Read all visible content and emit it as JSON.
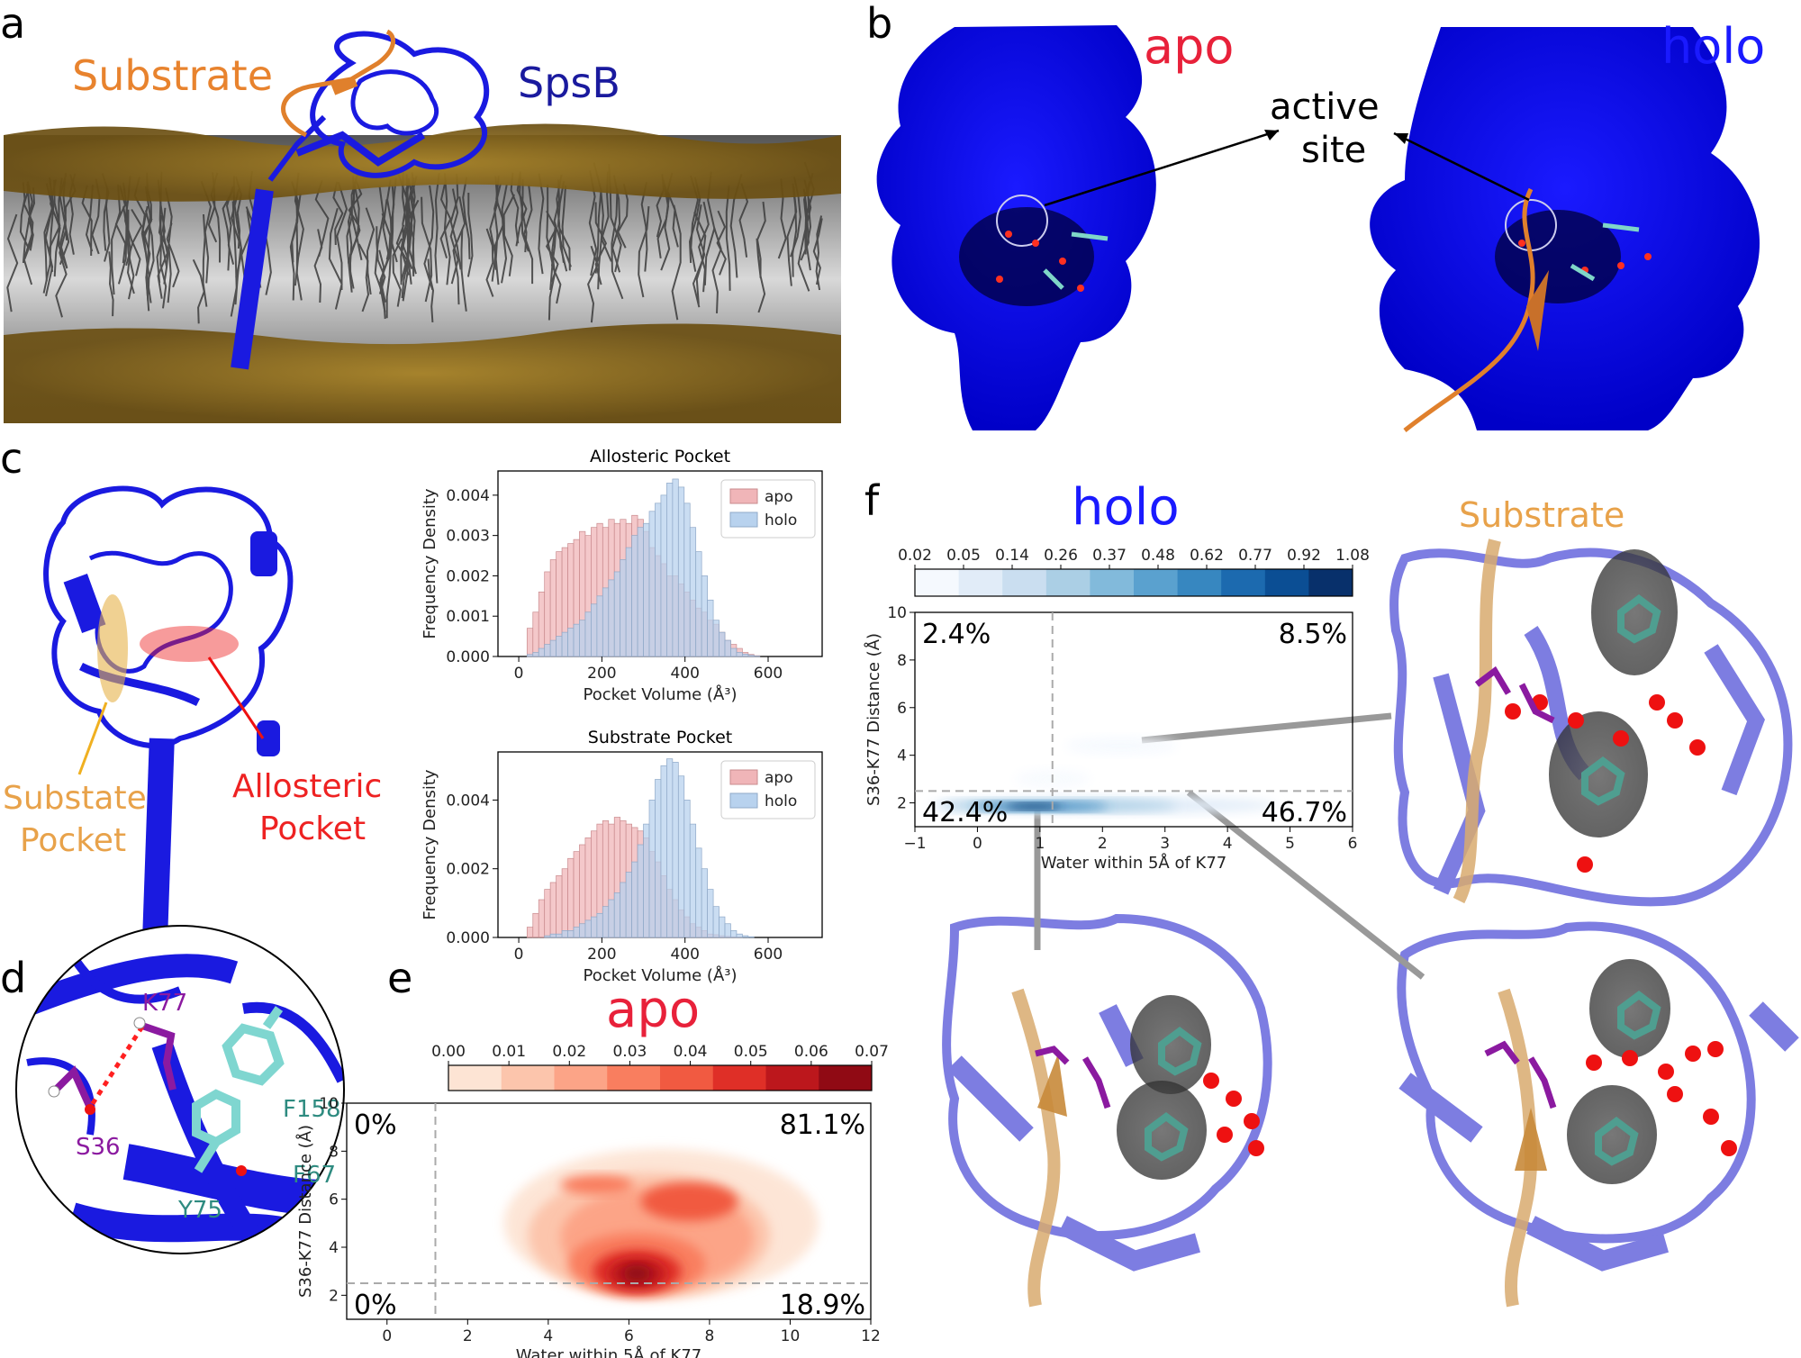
{
  "panels": {
    "a": {
      "label": "a",
      "substrate_label": "Substrate",
      "spsb_label": "SpsB",
      "colors": {
        "substrate": "#e0802c",
        "protein": "#1a1adb",
        "lipid_heads": "#8a6a1e",
        "lipid_tails": "#3a3a3a"
      }
    },
    "b": {
      "label": "b",
      "apo_label": "apo",
      "holo_label": "holo",
      "active_site_line1": "active",
      "active_site_line2": "site",
      "colors": {
        "apo": "#e8213a",
        "holo": "#1a1aff",
        "surface": "#0a0aee"
      }
    },
    "c": {
      "label": "c",
      "substrate_pocket_line1": "Substate",
      "substrate_pocket_line2": "Pocket",
      "allosteric_pocket_line1": "Allosteric",
      "allosteric_pocket_line2": "Pocket",
      "colors": {
        "substrate_pocket": "#e6b24a",
        "allosteric_pocket": "#ee2222"
      }
    },
    "d": {
      "label": "d",
      "residues": {
        "k77": "K77",
        "s36": "S36",
        "f158": "F158",
        "f67": "F67",
        "y75": "Y75"
      },
      "colors": {
        "k77": "#8b1aa0",
        "s36": "#8b1aa0",
        "aromatic": "#2e8b80"
      }
    },
    "e": {
      "label": "e",
      "title": "apo"
    },
    "f": {
      "label": "f",
      "title": "holo",
      "substrate_label": "Substrate"
    }
  },
  "chart_data": [
    {
      "id": "allosteric-hist",
      "type": "bar",
      "title": "Allosteric Pocket",
      "xlabel": "Pocket Volume (Å³)",
      "ylabel": "Frequency Density",
      "xlim": [
        -50,
        730
      ],
      "ylim": [
        0,
        0.0046
      ],
      "xticks": [
        "0",
        "200",
        "400",
        "600"
      ],
      "yticks": [
        "0.000",
        "0.001",
        "0.002",
        "0.003",
        "0.004"
      ],
      "legend": [
        "apo",
        "holo"
      ],
      "legend_position": "top-right",
      "colors": {
        "apo": "#f0b5b8",
        "holo": "#b8d2ee"
      },
      "bin_start": 20,
      "bin_width": 14,
      "series": [
        {
          "name": "apo",
          "values": [
            0.0007,
            0.0011,
            0.0016,
            0.0021,
            0.0024,
            0.0026,
            0.0027,
            0.0028,
            0.0029,
            0.0031,
            0.003,
            0.0032,
            0.0033,
            0.0032,
            0.0034,
            0.0033,
            0.0034,
            0.0033,
            0.0035,
            0.0034,
            0.0031,
            0.0027,
            0.0025,
            0.0023,
            0.002,
            0.002,
            0.0018,
            0.0016,
            0.0014,
            0.0012,
            0.0011,
            0.0009,
            0.0008,
            0.0006,
            0.0004,
            0.0003,
            0.0002,
            0.0001,
            5e-05,
            2e-05
          ]
        },
        {
          "name": "holo",
          "values": [
            5e-05,
            0.0001,
            0.0002,
            0.0003,
            0.0004,
            0.0005,
            0.0006,
            0.0007,
            0.0008,
            0.0009,
            0.0011,
            0.0013,
            0.0015,
            0.0017,
            0.0019,
            0.0021,
            0.0024,
            0.0027,
            0.003,
            0.0032,
            0.0033,
            0.0036,
            0.0038,
            0.004,
            0.0043,
            0.0044,
            0.0042,
            0.0038,
            0.0032,
            0.0026,
            0.002,
            0.0014,
            0.0009,
            0.0006,
            0.0004,
            0.0002,
            0.0001,
            6e-05,
            3e-05,
            1e-05
          ]
        }
      ]
    },
    {
      "id": "substrate-hist",
      "type": "bar",
      "title": "Substrate Pocket",
      "xlabel": "Pocket Volume (Å³)",
      "ylabel": "Frequency Density",
      "xlim": [
        -50,
        730
      ],
      "ylim": [
        0,
        0.0054
      ],
      "xticks": [
        "0",
        "200",
        "400",
        "600"
      ],
      "yticks": [
        "0.000",
        "0.002",
        "0.004"
      ],
      "legend": [
        "apo",
        "holo"
      ],
      "legend_position": "top-right",
      "colors": {
        "apo": "#f0b5b8",
        "holo": "#b8d2ee"
      },
      "bin_start": 20,
      "bin_width": 14,
      "series": [
        {
          "name": "apo",
          "values": [
            0.0003,
            0.0007,
            0.0011,
            0.0014,
            0.0016,
            0.0018,
            0.002,
            0.0023,
            0.0025,
            0.0027,
            0.0029,
            0.0031,
            0.0033,
            0.0034,
            0.0033,
            0.0035,
            0.0034,
            0.0033,
            0.0032,
            0.0031,
            0.0029,
            0.0025,
            0.0022,
            0.0018,
            0.0014,
            0.0011,
            0.0008,
            0.0006,
            0.0004,
            0.0003,
            0.0002,
            0.0001,
            8e-05,
            5e-05,
            3e-05,
            2e-05,
            1e-05,
            0,
            0,
            0
          ]
        },
        {
          "name": "holo",
          "values": [
            0,
            0,
            0,
            5e-05,
            0.0001,
            0.0001,
            0.0002,
            0.0002,
            0.0003,
            0.0004,
            0.0005,
            0.0006,
            0.0007,
            0.0009,
            0.0011,
            0.0013,
            0.0016,
            0.0019,
            0.0022,
            0.0027,
            0.0033,
            0.004,
            0.0046,
            0.005,
            0.0052,
            0.0051,
            0.0047,
            0.004,
            0.0033,
            0.0026,
            0.002,
            0.0014,
            0.0009,
            0.0006,
            0.0004,
            0.0002,
            0.0001,
            5e-05,
            2e-05,
            0
          ]
        }
      ]
    },
    {
      "id": "apo-kde",
      "type": "heatmap",
      "title": "apo",
      "xlabel": "Water within 5Å of K77",
      "ylabel": "S36-K77 Distance (Å)",
      "xlim": [
        -1,
        12
      ],
      "ylim": [
        1,
        10
      ],
      "xticks": [
        "0",
        "2",
        "4",
        "6",
        "8",
        "10",
        "12"
      ],
      "yticks": [
        "2",
        "4",
        "6",
        "8",
        "10"
      ],
      "colorbar_ticks": [
        "0.00",
        "0.01",
        "0.02",
        "0.03",
        "0.04",
        "0.05",
        "0.06",
        "0.07"
      ],
      "colormap": [
        "#fde4d4",
        "#fcc5ac",
        "#fca487",
        "#f97e5f",
        "#f15a41",
        "#df2f27",
        "#bc171c",
        "#900a14"
      ],
      "threshold_x": 1.2,
      "threshold_y": 2.5,
      "quadrants": {
        "top_left": "0%",
        "top_right": "81.1%",
        "bottom_left": "0%",
        "bottom_right": "18.9%"
      },
      "peaks": [
        {
          "x": 6.2,
          "y": 2.9,
          "density": 0.07
        },
        {
          "x": 7.6,
          "y": 5.9,
          "density": 0.05
        },
        {
          "x": 5.2,
          "y": 6.6,
          "density": 0.03
        }
      ]
    },
    {
      "id": "holo-kde",
      "type": "heatmap",
      "title": "holo",
      "xlabel": "Water within 5Å of K77",
      "ylabel": "S36-K77 Distance (Å)",
      "xlim": [
        -1,
        6
      ],
      "ylim": [
        1,
        10
      ],
      "xticks": [
        "−1",
        "0",
        "1",
        "2",
        "3",
        "4",
        "5",
        "6"
      ],
      "yticks": [
        "2",
        "4",
        "6",
        "8",
        "10"
      ],
      "colorbar_ticks": [
        "0.02",
        "0.05",
        "0.14",
        "0.26",
        "0.37",
        "0.48",
        "0.62",
        "0.77",
        "0.92",
        "1.08"
      ],
      "colormap": [
        "#f5f9fe",
        "#e1ecf8",
        "#cadef0",
        "#abcfe5",
        "#82badb",
        "#5aa1cf",
        "#3787c0",
        "#1c6aaf",
        "#0b4e94",
        "#08306b"
      ],
      "threshold_x": 1.2,
      "threshold_y": 2.5,
      "quadrants": {
        "top_left": "2.4%",
        "top_right": "8.5%",
        "bottom_left": "42.4%",
        "bottom_right": "46.7%"
      },
      "peaks": [
        {
          "x": 0.9,
          "y": 1.85,
          "density": 1.08
        },
        {
          "x": 2.8,
          "y": 4.3,
          "density": 0.05
        }
      ]
    }
  ]
}
